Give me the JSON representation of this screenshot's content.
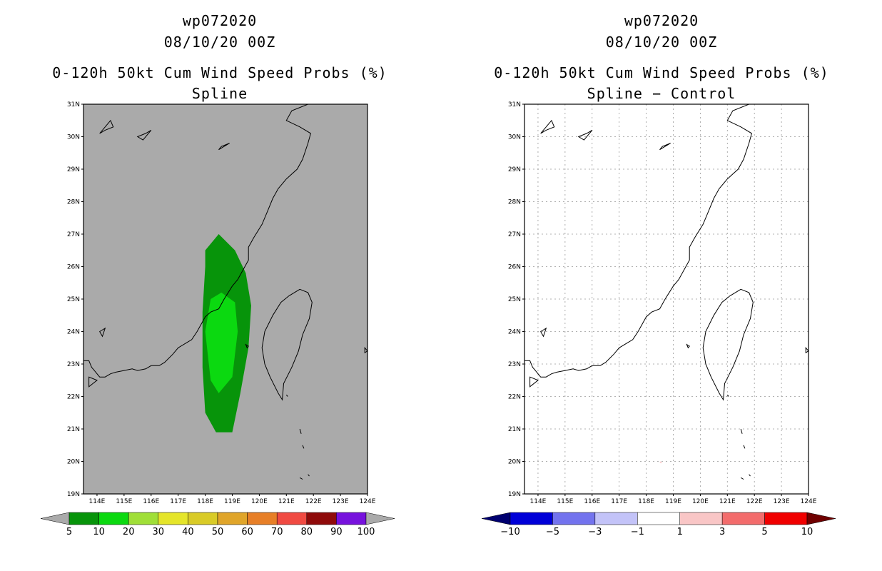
{
  "left_panel": {
    "title_storm": "wp072020",
    "title_date": "08/10/20 00Z",
    "title_product": "0-120h 50kt Cum Wind Speed Probs (%)",
    "subtitle": "Spline"
  },
  "right_panel": {
    "title_storm": "wp072020",
    "title_date": "08/10/20 00Z",
    "title_product": "0-120h 50kt Cum Wind Speed Probs (%)",
    "subtitle": "Spline − Control"
  },
  "chart_data": [
    {
      "type": "heatmap",
      "title": "0-120h 50kt Cum Wind Speed Probs (%) Spline",
      "xlim": [
        113.5,
        124
      ],
      "ylim": [
        19,
        31
      ],
      "x_ticks": [
        "114E",
        "115E",
        "116E",
        "117E",
        "118E",
        "119E",
        "120E",
        "121E",
        "122E",
        "123E",
        "124E"
      ],
      "y_ticks": [
        "19N",
        "20N",
        "21N",
        "22N",
        "23N",
        "24N",
        "25N",
        "26N",
        "27N",
        "28N",
        "29N",
        "30N",
        "31N"
      ],
      "background_color": "#aaaaaa",
      "contours": [
        {
          "level": "5-10",
          "color": "#07940a",
          "points": [
            [
              118.5,
              27.0
            ],
            [
              119.1,
              26.5
            ],
            [
              119.5,
              25.8
            ],
            [
              119.7,
              24.8
            ],
            [
              119.6,
              23.5
            ],
            [
              119.3,
              22.1
            ],
            [
              119.0,
              20.9
            ],
            [
              118.4,
              20.9
            ],
            [
              118.0,
              21.5
            ],
            [
              117.9,
              22.9
            ],
            [
              117.9,
              24.6
            ],
            [
              118.0,
              26.0
            ],
            [
              118.0,
              26.5
            ]
          ]
        },
        {
          "level": "10-20",
          "color": "#0bd910",
          "points": [
            [
              118.6,
              25.2
            ],
            [
              119.1,
              24.9
            ],
            [
              119.2,
              24.0
            ],
            [
              119.0,
              22.6
            ],
            [
              118.5,
              22.1
            ],
            [
              118.2,
              22.5
            ],
            [
              118.0,
              24.0
            ],
            [
              118.2,
              25.0
            ]
          ]
        }
      ],
      "colorbar": {
        "labels": [
          "5",
          "10",
          "20",
          "30",
          "40",
          "50",
          "60",
          "70",
          "80",
          "90",
          "100"
        ],
        "colors": [
          "#07940a",
          "#0bd910",
          "#a0df38",
          "#e5e52a",
          "#d9cb27",
          "#e0a52a",
          "#e77f27",
          "#f04a42",
          "#8f0a0a",
          "#7712dd"
        ],
        "under_color": "#aaaaaa",
        "over_color": "#aaaaaa"
      }
    },
    {
      "type": "heatmap",
      "title": "0-120h 50kt Cum Wind Speed Probs (%) Spline - Control",
      "xlim": [
        113.5,
        124
      ],
      "ylim": [
        19,
        31
      ],
      "x_ticks": [
        "114E",
        "115E",
        "116E",
        "117E",
        "118E",
        "119E",
        "120E",
        "121E",
        "122E",
        "123E",
        "124E"
      ],
      "y_ticks": [
        "19N",
        "20N",
        "21N",
        "22N",
        "23N",
        "24N",
        "25N",
        "26N",
        "27N",
        "28N",
        "29N",
        "30N",
        "31N"
      ],
      "background_color": "#ffffff",
      "grid": true,
      "contours": [
        {
          "level": "1-3",
          "color": "#f9c6c6",
          "points": [
            [
              118.52,
              20.0
            ],
            [
              118.58,
              19.98
            ],
            [
              118.55,
              19.94
            ],
            [
              118.5,
              19.97
            ]
          ]
        }
      ],
      "colorbar": {
        "labels": [
          "−10",
          "−5",
          "−3",
          "−1",
          "1",
          "3",
          "5",
          "10"
        ],
        "colors": [
          "#0000d8",
          "#7373ee",
          "#c3c3f8",
          "#ffffff",
          "#f9c6c6",
          "#f36c6c",
          "#f00000"
        ],
        "under_color": "#000070",
        "over_color": "#700000"
      }
    }
  ],
  "coastline": {
    "mainland": [
      [
        113.5,
        23.1
      ],
      [
        113.7,
        23.1
      ],
      [
        113.8,
        22.9
      ],
      [
        113.9,
        22.8
      ],
      [
        114.1,
        22.6
      ],
      [
        114.3,
        22.6
      ],
      [
        114.5,
        22.7
      ],
      [
        114.7,
        22.75
      ],
      [
        115.0,
        22.8
      ],
      [
        115.3,
        22.85
      ],
      [
        115.5,
        22.8
      ],
      [
        115.8,
        22.85
      ],
      [
        116.0,
        22.95
      ],
      [
        116.3,
        22.95
      ],
      [
        116.5,
        23.05
      ],
      [
        116.8,
        23.3
      ],
      [
        117.0,
        23.5
      ],
      [
        117.3,
        23.65
      ],
      [
        117.5,
        23.75
      ],
      [
        117.7,
        24.0
      ],
      [
        118.0,
        24.45
      ],
      [
        118.2,
        24.6
      ],
      [
        118.5,
        24.7
      ],
      [
        118.7,
        25.0
      ],
      [
        119.0,
        25.4
      ],
      [
        119.2,
        25.6
      ],
      [
        119.4,
        25.9
      ],
      [
        119.6,
        26.2
      ],
      [
        119.6,
        26.6
      ],
      [
        119.8,
        26.9
      ],
      [
        120.1,
        27.3
      ],
      [
        120.3,
        27.7
      ],
      [
        120.5,
        28.1
      ],
      [
        120.7,
        28.4
      ],
      [
        121.0,
        28.7
      ],
      [
        121.4,
        29.0
      ],
      [
        121.6,
        29.3
      ],
      [
        121.8,
        29.8
      ],
      [
        121.9,
        30.1
      ],
      [
        121.5,
        30.3
      ],
      [
        121.0,
        30.5
      ],
      [
        121.2,
        30.8
      ],
      [
        121.8,
        31.0
      ]
    ],
    "taiwan": [
      [
        121.5,
        25.3
      ],
      [
        121.8,
        25.2
      ],
      [
        121.95,
        24.9
      ],
      [
        121.85,
        24.4
      ],
      [
        121.6,
        23.9
      ],
      [
        121.45,
        23.4
      ],
      [
        121.2,
        22.9
      ],
      [
        120.9,
        22.4
      ],
      [
        120.85,
        21.9
      ],
      [
        120.7,
        22.1
      ],
      [
        120.4,
        22.6
      ],
      [
        120.2,
        23.0
      ],
      [
        120.1,
        23.5
      ],
      [
        120.2,
        24.0
      ],
      [
        120.5,
        24.5
      ],
      [
        120.8,
        24.9
      ],
      [
        121.1,
        25.1
      ]
    ],
    "islands": [
      [
        [
          119.5,
          23.6
        ],
        [
          119.6,
          23.55
        ],
        [
          119.55,
          23.5
        ]
      ],
      [
        [
          121.0,
          22.05
        ],
        [
          121.05,
          22.0
        ]
      ],
      [
        [
          121.5,
          21.0
        ],
        [
          121.55,
          20.85
        ]
      ],
      [
        [
          121.6,
          20.5
        ],
        [
          121.65,
          20.4
        ]
      ],
      [
        [
          121.5,
          19.5
        ],
        [
          121.6,
          19.45
        ]
      ],
      [
        [
          121.8,
          19.6
        ],
        [
          121.85,
          19.55
        ]
      ],
      [
        [
          123.9,
          23.5
        ],
        [
          124.0,
          23.4
        ],
        [
          123.9,
          23.35
        ]
      ],
      [
        [
          114.1,
          30.1
        ],
        [
          114.5,
          30.5
        ],
        [
          114.6,
          30.3
        ],
        [
          114.3,
          30.2
        ]
      ],
      [
        [
          115.5,
          30.0
        ],
        [
          115.8,
          30.1
        ],
        [
          116.0,
          30.2
        ],
        [
          115.7,
          29.9
        ]
      ],
      [
        [
          118.5,
          29.6
        ],
        [
          118.9,
          29.8
        ],
        [
          118.6,
          29.7
        ]
      ],
      [
        [
          114.1,
          24.0
        ],
        [
          114.3,
          24.1
        ],
        [
          114.2,
          23.85
        ]
      ],
      [
        [
          113.7,
          22.6
        ],
        [
          114.0,
          22.5
        ],
        [
          113.7,
          22.3
        ]
      ]
    ]
  }
}
